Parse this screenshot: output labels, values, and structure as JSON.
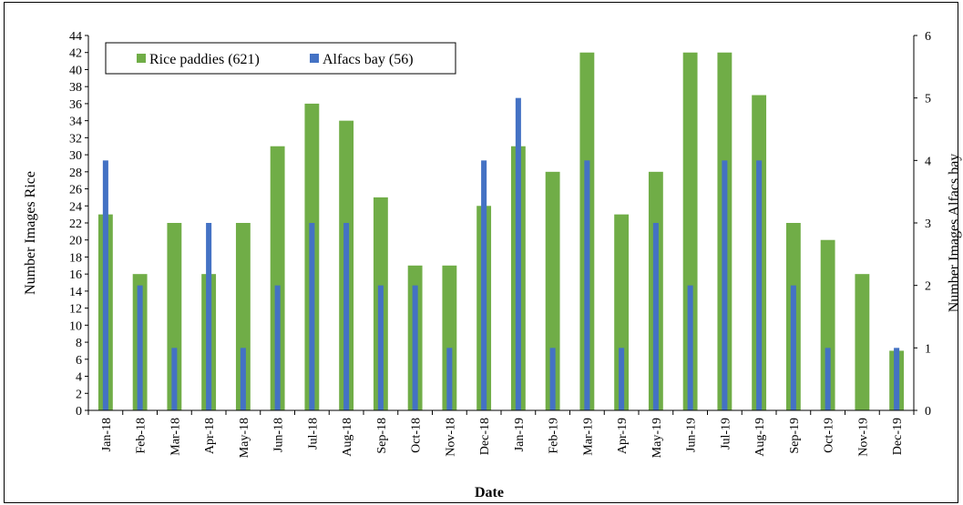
{
  "chart_data": {
    "type": "bar",
    "categories": [
      "Jan-18",
      "Feb-18",
      "Mar-18",
      "Apr-18",
      "May-18",
      "Jun-18",
      "Jul-18",
      "Aug-18",
      "Sep-18",
      "Oct-18",
      "Nov-18",
      "Dec-18",
      "Jan-19",
      "Feb-19",
      "Mar-19",
      "Apr-19",
      "May-19",
      "Jun-19",
      "Jul-19",
      "Aug-19",
      "Sep-19",
      "Oct-19",
      "Nov-19",
      "Dec-19"
    ],
    "series": [
      {
        "name": "Rice paddies (621)",
        "axis": "left",
        "color": "#70ad47",
        "values": [
          23,
          16,
          22,
          16,
          22,
          31,
          36,
          34,
          25,
          17,
          17,
          24,
          31,
          28,
          42,
          23,
          28,
          42,
          42,
          37,
          22,
          20,
          16,
          7
        ]
      },
      {
        "name": "Alfacs bay (56)",
        "axis": "right",
        "color": "#4472c4",
        "values": [
          4,
          2,
          1,
          3,
          1,
          2,
          3,
          3,
          2,
          2,
          1,
          4,
          5,
          1,
          4,
          1,
          3,
          2,
          4,
          4,
          2,
          1,
          0,
          1
        ]
      }
    ],
    "xlabel": "Date",
    "ylabel": "Number Images Rice",
    "y2label": "Number Images Alfacs bay",
    "ylim": [
      0,
      44
    ],
    "y2lim": [
      0,
      6
    ],
    "yticks": [
      0,
      2,
      4,
      6,
      8,
      10,
      12,
      14,
      16,
      18,
      20,
      22,
      24,
      26,
      28,
      30,
      32,
      34,
      36,
      38,
      40,
      42,
      44
    ],
    "y2ticks": [
      0,
      1,
      2,
      3,
      4,
      5,
      6
    ],
    "grid": false,
    "legend_position": "top-left"
  }
}
